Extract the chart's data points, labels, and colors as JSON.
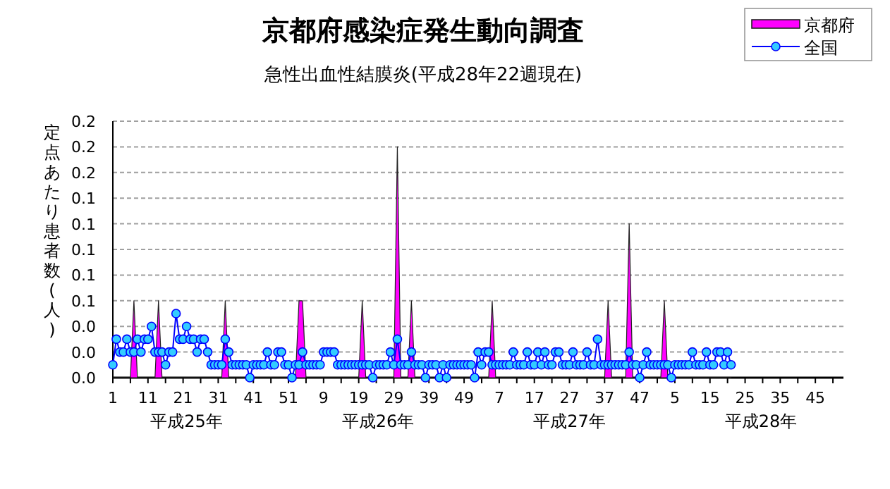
{
  "chart_data": {
    "type": "line",
    "title": "京都府感染症発生動向調査",
    "subtitle": "急性出血性結膜炎(平成28年22週現在)",
    "ylabel": "定点あたり患者数(人)",
    "annotations": [
      "平成25年",
      "平成26年",
      "平成27年",
      "平成28年"
    ],
    "categories": [
      "1",
      null,
      null,
      null,
      null,
      null,
      null,
      null,
      null,
      null,
      "11",
      null,
      null,
      null,
      null,
      null,
      null,
      null,
      null,
      null,
      "21",
      null,
      null,
      null,
      null,
      null,
      null,
      null,
      null,
      null,
      "31",
      null,
      null,
      null,
      null,
      null,
      null,
      null,
      null,
      null,
      "41",
      null,
      null,
      null,
      null,
      null,
      null,
      null,
      null,
      null,
      "51",
      null,
      null,
      null,
      null,
      null,
      null,
      null,
      null,
      null,
      "9",
      null,
      null,
      null,
      null,
      null,
      null,
      null,
      null,
      null,
      "19",
      null,
      null,
      null,
      null,
      null,
      null,
      null,
      null,
      null,
      "29",
      null,
      null,
      null,
      null,
      null,
      null,
      null,
      null,
      null,
      "39",
      null,
      null,
      null,
      null,
      null,
      null,
      null,
      null,
      null,
      "49",
      null,
      null,
      null,
      null,
      null,
      null,
      null,
      null,
      null,
      "7",
      null,
      null,
      null,
      null,
      null,
      null,
      null,
      null,
      null,
      "17",
      null,
      null,
      null,
      null,
      null,
      null,
      null,
      null,
      null,
      "27",
      null,
      null,
      null,
      null,
      null,
      null,
      null,
      null,
      null,
      "37",
      null,
      null,
      null,
      null,
      null,
      null,
      null,
      null,
      null,
      "47",
      null,
      null,
      null,
      null,
      null,
      null,
      null,
      null,
      null,
      "5",
      null,
      null,
      null,
      null,
      null,
      null,
      null,
      null,
      null,
      "15",
      null,
      null,
      null,
      null,
      null,
      null,
      null,
      null,
      null,
      "25",
      null,
      null,
      null,
      null,
      null,
      null,
      null,
      null,
      null,
      "35",
      null,
      null,
      null,
      null,
      null,
      null,
      null,
      null,
      null,
      "45",
      null,
      null,
      null,
      null,
      null,
      null,
      null
    ],
    "ylim": [
      0,
      0.2
    ],
    "yticks": [
      {
        "value": 0,
        "label": "0.0"
      },
      {
        "value": 0.02,
        "label": "0.0"
      },
      {
        "value": 0.04,
        "label": "0.0"
      },
      {
        "value": 0.06,
        "label": "0.1"
      },
      {
        "value": 0.08,
        "label": "0.1"
      },
      {
        "value": 0.1,
        "label": "0.1"
      },
      {
        "value": 0.12,
        "label": "0.1"
      },
      {
        "value": 0.14,
        "label": "0.1"
      },
      {
        "value": 0.16,
        "label": "0.2"
      },
      {
        "value": 0.18,
        "label": "0.2"
      },
      {
        "value": 0.2,
        "label": "0.2"
      }
    ],
    "grid": "y",
    "legend": "top right",
    "series": [
      {
        "name": "京都府",
        "type": "area",
        "color": "#ff00ff",
        "values": [
          0,
          0,
          0,
          0,
          0,
          0,
          0.06,
          0,
          0,
          0,
          0,
          0,
          0,
          0.06,
          0,
          0,
          0,
          0,
          0,
          0,
          0,
          0,
          0,
          0,
          0,
          0,
          0,
          0,
          0,
          0,
          0,
          0,
          0.06,
          0,
          0,
          0,
          0,
          0,
          0,
          0,
          0,
          0,
          0,
          0,
          0,
          0,
          0,
          0,
          0,
          0,
          0,
          0,
          0,
          0.06,
          0.06,
          0,
          0,
          0,
          0,
          0,
          0,
          0,
          0,
          0,
          0,
          0,
          0,
          0,
          0,
          0,
          0,
          0.06,
          0,
          0,
          0,
          0,
          0,
          0,
          0,
          0,
          0,
          0.18,
          0,
          0,
          0,
          0.06,
          0,
          0,
          0,
          0,
          0,
          0,
          0,
          0,
          0,
          0,
          0,
          0,
          0,
          0,
          0,
          0,
          0,
          0,
          0,
          0,
          0,
          0,
          0.06,
          0,
          0,
          0,
          0,
          0,
          0,
          0,
          0,
          0,
          0,
          0,
          0,
          0,
          0,
          0,
          0,
          0,
          0,
          0,
          0,
          0,
          0,
          0,
          0,
          0,
          0,
          0,
          0,
          0,
          0,
          0,
          0,
          0.06,
          0,
          0,
          0,
          0,
          0,
          0.12,
          0,
          0,
          0,
          0,
          0,
          0,
          0,
          0,
          0,
          0.06,
          0,
          0,
          0,
          0,
          0,
          0,
          0,
          0,
          0,
          0,
          0,
          0,
          0,
          0,
          0,
          0,
          0,
          0,
          0,
          null,
          null,
          null,
          null,
          null,
          null,
          null,
          null,
          null,
          null,
          null,
          null,
          null,
          null,
          null,
          null,
          null,
          null,
          null,
          null,
          null,
          null,
          null,
          null,
          null,
          null,
          null,
          null,
          null,
          null,
          null
        ]
      },
      {
        "name": "全国",
        "type": "line",
        "color": "#0000ff",
        "marker": "circle",
        "values": [
          0.01,
          0.03,
          0.02,
          0.02,
          0.03,
          0.02,
          0.02,
          0.03,
          0.02,
          0.03,
          0.03,
          0.04,
          0.02,
          0.02,
          0.02,
          0.01,
          0.02,
          0.02,
          0.05,
          0.03,
          0.03,
          0.04,
          0.03,
          0.03,
          0.02,
          0.03,
          0.03,
          0.02,
          0.01,
          0.01,
          0.01,
          0.01,
          0.03,
          0.02,
          0.01,
          0.01,
          0.01,
          0.01,
          0.01,
          0,
          0.01,
          0.01,
          0.01,
          0.01,
          0.02,
          0.01,
          0.01,
          0.02,
          0.02,
          0.01,
          0.01,
          0,
          0.01,
          0.01,
          0.02,
          0.01,
          0.01,
          0.01,
          0.01,
          0.01,
          0.02,
          0.02,
          0.02,
          0.02,
          0.01,
          0.01,
          0.01,
          0.01,
          0.01,
          0.01,
          0.01,
          0.01,
          0.01,
          0.01,
          0,
          0.01,
          0.01,
          0.01,
          0.01,
          0.02,
          0.01,
          0.03,
          0.01,
          0.01,
          0.01,
          0.02,
          0.01,
          0.01,
          0.01,
          0,
          0.01,
          0.01,
          0.01,
          0,
          0.01,
          0,
          0.01,
          0.01,
          0.01,
          0.01,
          0.01,
          0.01,
          0.01,
          0,
          0.02,
          0.01,
          0.02,
          0.02,
          0.01,
          0.01,
          0.01,
          0.01,
          0.01,
          0.01,
          0.02,
          0.01,
          0.01,
          0.01,
          0.02,
          0.01,
          0.01,
          0.02,
          0.01,
          0.02,
          0.01,
          0.01,
          0.02,
          0.02,
          0.01,
          0.01,
          0.01,
          0.02,
          0.01,
          0.01,
          0.01,
          0.02,
          0.01,
          0.01,
          0.03,
          0.01,
          0.01,
          0.01,
          0.01,
          0.01,
          0.01,
          0.01,
          0.01,
          0.02,
          0.01,
          0.01,
          0,
          0.01,
          0.02,
          0.01,
          0.01,
          0.01,
          0.01,
          0.01,
          0.01,
          0,
          0.01,
          0.01,
          0.01,
          0.01,
          0.01,
          0.02,
          0.01,
          0.01,
          0.01,
          0.02,
          0.01,
          0.01,
          0.02,
          0.02,
          0.01,
          0.02,
          0.01,
          null,
          null,
          null,
          null,
          null,
          null,
          null,
          null,
          null,
          null,
          null,
          null,
          null,
          null,
          null,
          null,
          null,
          null,
          null,
          null,
          null,
          null,
          null,
          null,
          null,
          null,
          null,
          null,
          null,
          null,
          null
        ]
      }
    ]
  }
}
